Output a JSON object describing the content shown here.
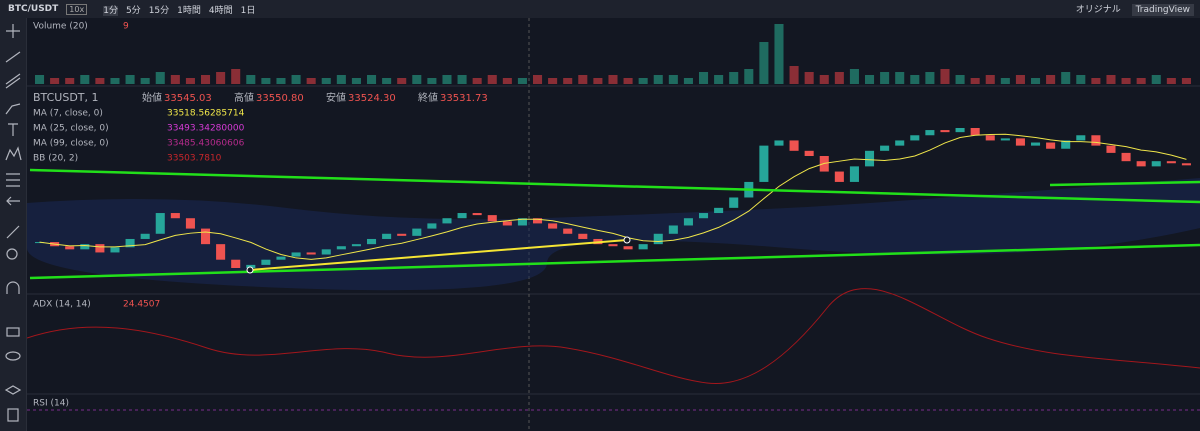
{
  "header": {
    "symbol": "BTC/USDT",
    "leverage": "10x",
    "intervals": [
      "1分",
      "5分",
      "15分",
      "1時間",
      "4時間",
      "1日"
    ],
    "views": [
      "オリジナル",
      "TradingView"
    ]
  },
  "volume": {
    "label": "Volume (20)",
    "value": "9",
    "values": [
      3,
      2,
      2,
      3,
      2,
      2,
      3,
      2,
      4,
      3,
      2,
      3,
      4,
      5,
      3,
      2,
      2,
      3,
      2,
      2,
      3,
      2,
      3,
      2,
      2,
      3,
      2,
      3,
      3,
      2,
      3,
      2,
      2,
      3,
      2,
      2,
      3,
      2,
      3,
      2,
      2,
      3,
      3,
      2,
      4,
      3,
      4,
      5,
      14,
      20,
      6,
      4,
      3,
      4,
      5,
      3,
      4,
      4,
      3,
      4,
      5,
      3,
      2,
      3,
      2,
      3,
      2,
      3,
      4,
      3,
      2,
      3,
      2,
      2,
      3,
      2,
      2
    ]
  },
  "main": {
    "symbol": "BTCUSDT, 1",
    "ohlc": [
      {
        "label": "始値",
        "value": "33545.03"
      },
      {
        "label": "高値",
        "value": "33550.80"
      },
      {
        "label": "安値",
        "value": "33524.30"
      },
      {
        "label": "終値",
        "value": "33531.73"
      }
    ],
    "indicators": [
      {
        "label": "MA (7, close, 0)",
        "value": "33518.56285714",
        "color": "#f0e64a"
      },
      {
        "label": "MA (25, close, 0)",
        "value": "33493.34280000",
        "color": "#d63bd6"
      },
      {
        "label": "MA (99, close, 0)",
        "value": "33485.43060606",
        "color": "#b52b8c"
      },
      {
        "label": "BB (20, 2)",
        "value": "33503.7810",
        "color": "#c9262b"
      }
    ],
    "closes": [
      33462,
      33458,
      33455,
      33460,
      33452,
      33457,
      33465,
      33470,
      33490,
      33485,
      33475,
      33460,
      33445,
      33437,
      33440,
      33445,
      33448,
      33452,
      33450,
      33455,
      33458,
      33460,
      33465,
      33470,
      33468,
      33475,
      33480,
      33485,
      33490,
      33488,
      33482,
      33478,
      33485,
      33480,
      33475,
      33470,
      33465,
      33460,
      33458,
      33455,
      33460,
      33470,
      33478,
      33485,
      33490,
      33495,
      33505,
      33520,
      33555,
      33560,
      33550,
      33545,
      33530,
      33520,
      33535,
      33550,
      33555,
      33560,
      33565,
      33570,
      33568,
      33572,
      33565,
      33560,
      33562,
      33555,
      33558,
      33552,
      33560,
      33565,
      33555,
      33548,
      33540,
      33535,
      33540,
      33538,
      33536
    ]
  },
  "adx": {
    "label": "ADX (14, 14)",
    "value": "24.4507"
  },
  "rsi": {
    "label": "RSI (14)"
  }
}
